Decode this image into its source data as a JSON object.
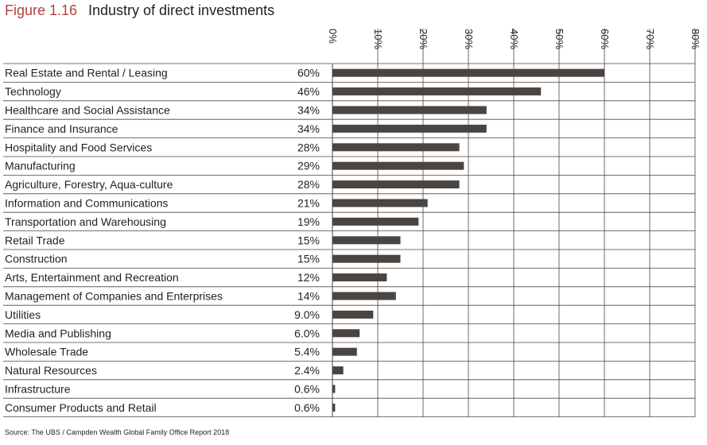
{
  "figure": {
    "number": "Figure 1.16",
    "title": "Industry of direct investments"
  },
  "source": "Source: The UBS / Campden Wealth Global Family Office Report 2018",
  "colors": {
    "bar": "#4a4541",
    "figure_number": "#b5403c",
    "grid": "#4a4541",
    "text": "#231f20"
  },
  "chart_data": {
    "type": "bar",
    "orientation": "horizontal",
    "categories": [
      "Real Estate and Rental / Leasing",
      "Technology",
      "Healthcare and Social Assistance",
      "Finance and Insurance",
      "Hospitality and Food Services",
      "Manufacturing",
      "Agriculture, Forestry, Aqua-culture",
      "Information and Communications",
      "Transportation and Warehousing",
      "Retail Trade",
      "Construction",
      "Arts, Entertainment and Recreation",
      "Management of Companies and Enterprises",
      "Utilities",
      "Media and Publishing",
      "Wholesale Trade",
      "Natural Resources",
      "Infrastructure",
      "Consumer Products and Retail"
    ],
    "values": [
      60,
      46,
      34,
      34,
      28,
      29,
      28,
      21,
      19,
      15,
      15,
      12,
      14,
      9.0,
      6.0,
      5.4,
      2.4,
      0.6,
      0.6
    ],
    "value_labels": [
      "60%",
      "46%",
      "34%",
      "34%",
      "28%",
      "29%",
      "28%",
      "21%",
      "19%",
      "15%",
      "15%",
      "12%",
      "14%",
      "9.0%",
      "6.0%",
      "5.4%",
      "2.4%",
      "0.6%",
      "0.6%"
    ],
    "xlim": [
      0,
      80
    ],
    "ticks": [
      "0%",
      "10%",
      "20%",
      "30%",
      "40%",
      "50%",
      "60%",
      "70%",
      "80%"
    ],
    "grid": true,
    "tick_label_rotation": "vertical"
  }
}
